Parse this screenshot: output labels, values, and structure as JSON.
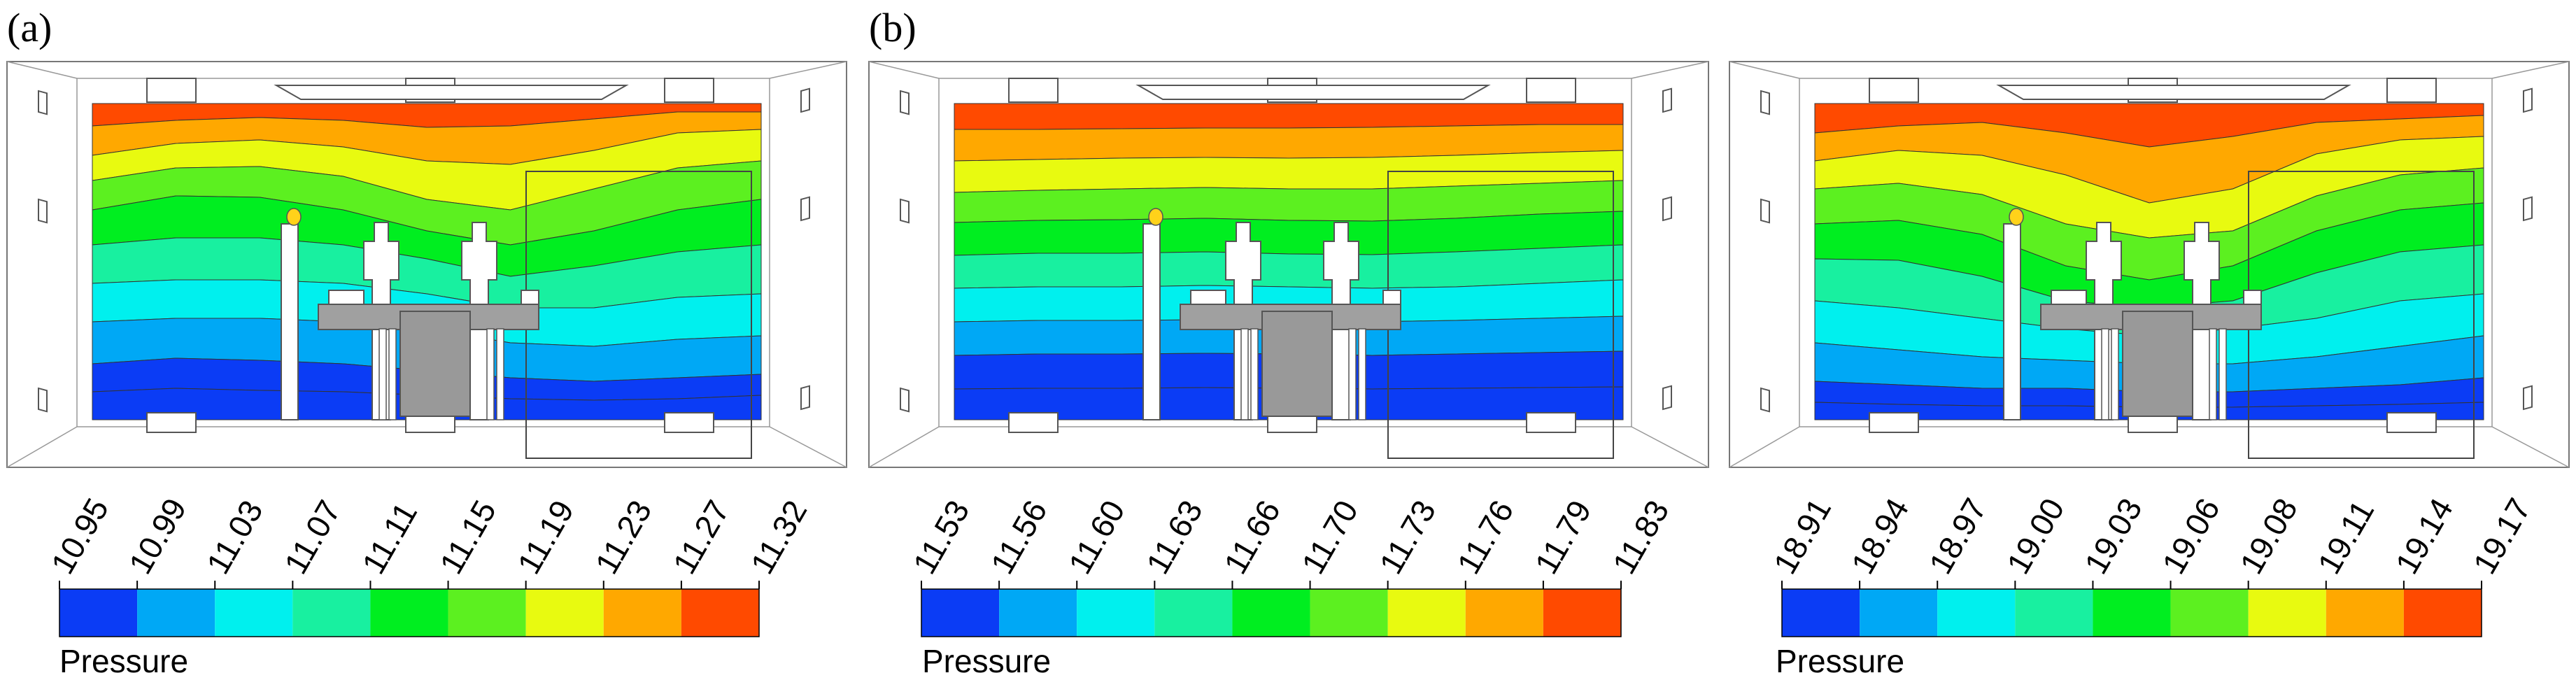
{
  "figure": {
    "panel_labels": [
      "(a)",
      "(b)"
    ],
    "colorbar_colors": [
      "#0b3cf5",
      "#00a8f5",
      "#00f0ee",
      "#18f0a0",
      "#00ee20",
      "#5cf020",
      "#e8fa10",
      "#ffa800",
      "#ff4a00"
    ],
    "panels": [
      {
        "label": "(a)",
        "legend_title": "Pressure",
        "ticks": [
          "10.95",
          "10.99",
          "11.03",
          "11.07",
          "11.11",
          "11.15",
          "11.19",
          "11.23",
          "11.27",
          "11.32"
        ]
      },
      {
        "label": "(b)",
        "legend_title": "Pressure",
        "ticks": [
          "11.53",
          "11.56",
          "11.60",
          "11.63",
          "11.66",
          "11.70",
          "11.73",
          "11.76",
          "11.79",
          "11.83"
        ]
      },
      {
        "label": "",
        "legend_title": "Pressure",
        "ticks": [
          "18.91",
          "18.94",
          "18.97",
          "19.00",
          "19.03",
          "19.06",
          "19.08",
          "19.11",
          "19.14",
          "19.17"
        ]
      }
    ]
  }
}
